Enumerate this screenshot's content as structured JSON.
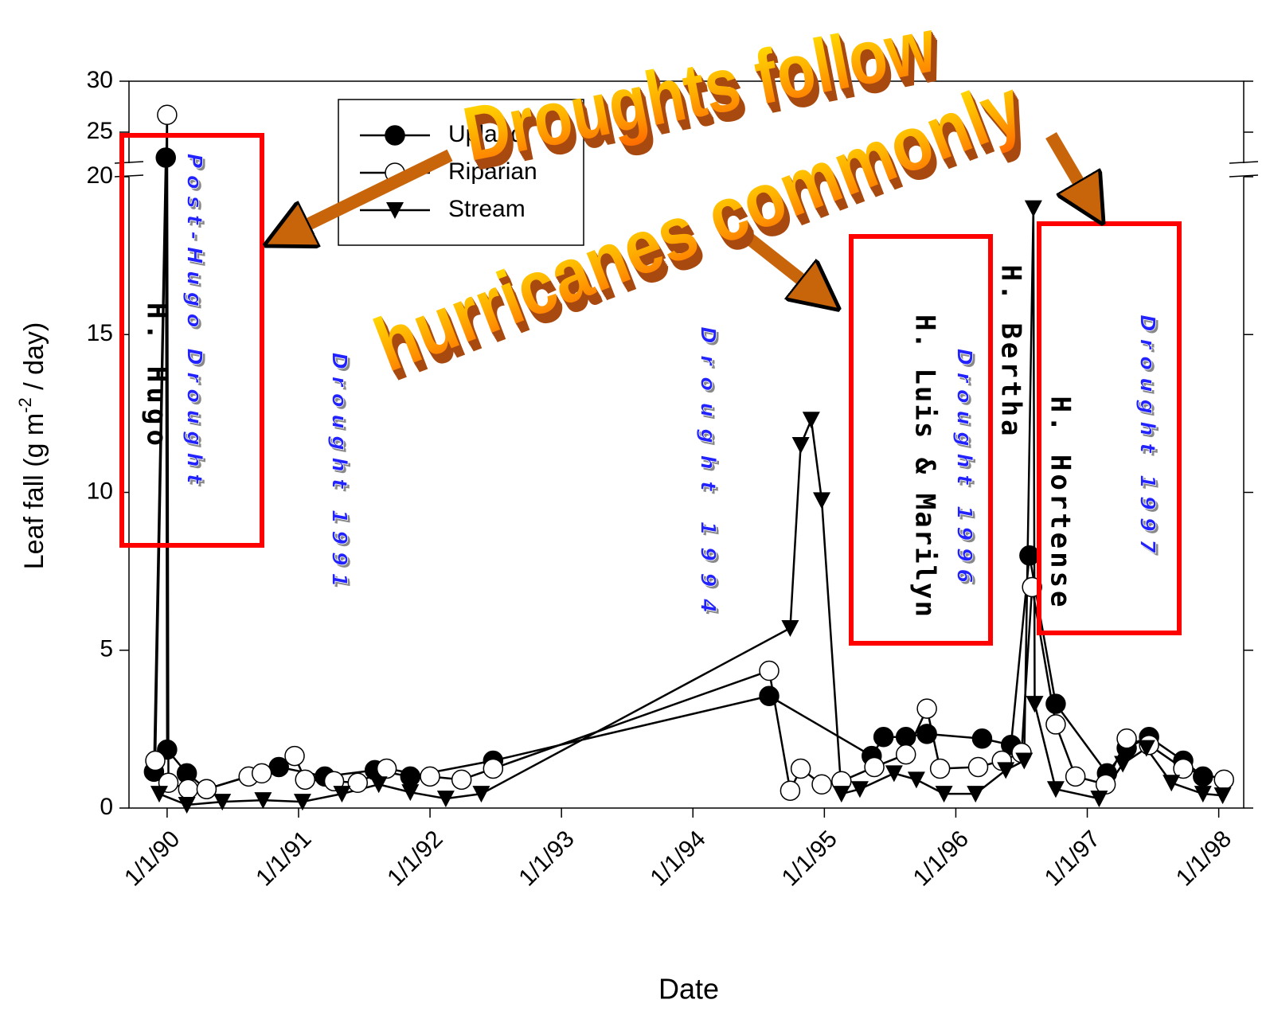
{
  "chart_data": {
    "type": "line",
    "xlabel": "Date",
    "ylabel": [
      "Leaf fall (g m",
      "-2",
      " / day)"
    ],
    "xlim": [
      1989.71,
      1998.19
    ],
    "xticks": [
      {
        "value": 1990,
        "label": "1/1/90"
      },
      {
        "value": 1991,
        "label": "1/1/91"
      },
      {
        "value": 1992,
        "label": "1/1/92"
      },
      {
        "value": 1993,
        "label": "1/1/93"
      },
      {
        "value": 1994,
        "label": "1/1/94"
      },
      {
        "value": 1995,
        "label": "1/1/95"
      },
      {
        "value": 1996,
        "label": "1/1/96"
      },
      {
        "value": 1997,
        "label": "1/1/97"
      },
      {
        "value": 1998,
        "label": "1/1/98"
      }
    ],
    "ylim": [
      0,
      30
    ],
    "ybreak": 20,
    "yticks": [
      0,
      5,
      10,
      15,
      20,
      25,
      30
    ],
    "series": [
      {
        "name": "Upland",
        "color": "#000000",
        "marker": "filled-circle",
        "x": [
          1989.9,
          1989.99,
          1990.0,
          1990.15,
          1990.3,
          1990.85,
          1991.2,
          1991.58,
          1991.85,
          1992.48,
          1994.58,
          1995.36,
          1995.45,
          1995.62,
          1995.78,
          1996.2,
          1996.42,
          1996.56,
          1996.76,
          1997.15,
          1997.3,
          1997.47,
          1997.73,
          1997.88
        ],
        "values": [
          1.15,
          22.5,
          1.85,
          1.1,
          0.6,
          1.3,
          1.0,
          1.2,
          1.0,
          1.5,
          3.55,
          1.65,
          2.25,
          2.25,
          2.35,
          2.2,
          2.0,
          8.0,
          3.3,
          1.1,
          1.9,
          2.25,
          1.5,
          1.0
        ]
      },
      {
        "name": "Riparian",
        "color": "#000000",
        "marker": "open-circle",
        "x": [
          1989.91,
          1990.0,
          1990.01,
          1990.16,
          1990.3,
          1990.62,
          1990.72,
          1990.97,
          1991.05,
          1991.27,
          1991.45,
          1991.67,
          1992.0,
          1992.24,
          1992.48,
          1994.58,
          1994.74,
          1994.82,
          1994.98,
          1995.13,
          1995.38,
          1995.62,
          1995.78,
          1995.88,
          1996.17,
          1996.35,
          1996.5,
          1996.58,
          1996.76,
          1996.91,
          1997.14,
          1997.3,
          1997.47,
          1997.73,
          1998.04
        ],
        "values": [
          1.5,
          26.7,
          0.8,
          0.6,
          0.6,
          1.0,
          1.1,
          1.65,
          0.9,
          0.85,
          0.8,
          1.25,
          1.0,
          0.9,
          1.25,
          4.35,
          0.55,
          1.25,
          0.75,
          0.85,
          1.3,
          1.7,
          3.15,
          1.25,
          1.3,
          1.5,
          1.75,
          7.0,
          2.65,
          1.0,
          0.75,
          2.2,
          2.0,
          1.25,
          0.9
        ]
      },
      {
        "name": "Stream",
        "color": "#000000",
        "marker": "triangle-down",
        "x": [
          1989.94,
          1990.15,
          1990.42,
          1990.73,
          1991.03,
          1991.33,
          1991.61,
          1991.85,
          1992.12,
          1992.39,
          1994.74,
          1994.82,
          1994.9,
          1994.98,
          1995.13,
          1995.27,
          1995.53,
          1995.7,
          1995.91,
          1996.15,
          1996.38,
          1996.52,
          1996.59,
          1996.6,
          1996.76,
          1997.09,
          1997.27,
          1997.45,
          1997.64,
          1997.88,
          1998.03
        ],
        "values": [
          0.45,
          0.1,
          0.2,
          0.25,
          0.2,
          0.45,
          0.75,
          0.5,
          0.3,
          0.45,
          5.7,
          11.5,
          12.3,
          9.75,
          0.45,
          0.6,
          1.1,
          0.9,
          0.45,
          0.45,
          1.2,
          1.5,
          19.0,
          3.3,
          0.6,
          0.3,
          1.4,
          1.9,
          0.8,
          0.45,
          0.4
        ]
      }
    ],
    "headline": [
      "Droughts follow",
      "hurricanes commonly"
    ],
    "annotations": [
      {
        "text": "H. Hugo",
        "kind": "hurricane"
      },
      {
        "text": "Post-Hugo Drought",
        "kind": "drought"
      },
      {
        "text": "Drought 1991",
        "kind": "drought"
      },
      {
        "text": "Drought 1994",
        "kind": "drought"
      },
      {
        "text": "H. Luis & Marilyn",
        "kind": "hurricane"
      },
      {
        "text": "Drought 1996",
        "kind": "drought"
      },
      {
        "text": "H. Bertha",
        "kind": "hurricane"
      },
      {
        "text": "H. Hortense",
        "kind": "hurricane"
      },
      {
        "text": "Drought 1997",
        "kind": "drought"
      }
    ]
  }
}
